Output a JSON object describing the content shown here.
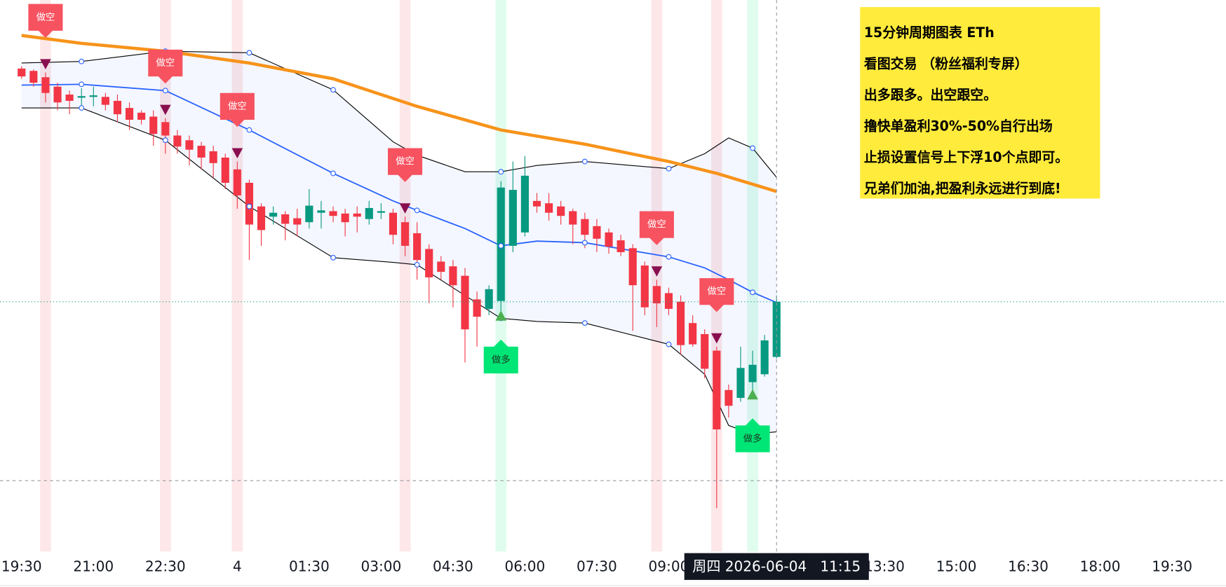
{
  "chart_data": {
    "type": "candlestick",
    "xlim": [
      -1.8,
      100.5
    ],
    "ylim": [
      0,
      700
    ],
    "xticks": [
      {
        "value": 0,
        "label": "19:30"
      },
      {
        "value": 6,
        "label": "21:00"
      },
      {
        "value": 12,
        "label": "22:30"
      },
      {
        "value": 18,
        "label": "4"
      },
      {
        "value": 24,
        "label": "01:30"
      },
      {
        "value": 30,
        "label": "03:00"
      },
      {
        "value": 36,
        "label": "04:30"
      },
      {
        "value": 42,
        "label": "06:00"
      },
      {
        "value": 48,
        "label": "07:30"
      },
      {
        "value": 54,
        "label": "09:00"
      },
      {
        "value": 72,
        "label": "13:30"
      },
      {
        "value": 78,
        "label": "15:00"
      },
      {
        "value": 84,
        "label": "16:30"
      },
      {
        "value": 90,
        "label": "18:00"
      },
      {
        "value": 96,
        "label": "19:30"
      }
    ],
    "up_color": "#089981",
    "down_color": "#f23645",
    "candles": {
      "x": [
        0,
        1,
        2,
        3,
        4,
        5,
        6,
        7,
        8,
        9,
        10,
        11,
        12,
        13,
        14,
        15,
        16,
        17,
        18,
        19,
        20,
        21,
        22,
        23,
        24,
        25,
        26,
        27,
        28,
        29,
        30,
        31,
        32,
        33,
        34,
        35,
        36,
        37,
        38,
        39,
        40,
        41,
        42,
        43,
        44,
        45,
        46,
        47,
        48,
        49,
        50,
        51,
        52,
        53,
        54,
        55,
        56,
        57,
        58,
        59,
        60,
        61,
        62,
        63
      ],
      "open": [
        613,
        610,
        602,
        590,
        580,
        576,
        577,
        577,
        572,
        563,
        557,
        552,
        545,
        528,
        522,
        515,
        508,
        500,
        485,
        468,
        438,
        425,
        428,
        423,
        418,
        430,
        432,
        429,
        429,
        422,
        430,
        430,
        418,
        404,
        384,
        368,
        362,
        350,
        320,
        308,
        318,
        388,
        405,
        445,
        442,
        438,
        432,
        422,
        413,
        405,
        395,
        385,
        363,
        337,
        328,
        317,
        290,
        276,
        255,
        205,
        195,
        215,
        225,
        247
      ],
      "high": [
        616,
        612,
        608,
        595,
        585,
        588,
        590,
        582,
        580,
        570,
        560,
        560,
        550,
        535,
        528,
        520,
        515,
        505,
        495,
        472,
        442,
        438,
        432,
        435,
        460,
        445,
        438,
        435,
        438,
        445,
        442,
        435,
        425,
        418,
        390,
        375,
        370,
        360,
        330,
        338,
        470,
        495,
        502,
        455,
        455,
        445,
        435,
        430,
        422,
        410,
        402,
        390,
        368,
        345,
        335,
        325,
        300,
        282,
        260,
        212,
        260,
        255,
        275,
        325
      ],
      "low": [
        600,
        590,
        570,
        560,
        555,
        565,
        565,
        560,
        545,
        535,
        542,
        515,
        505,
        505,
        490,
        485,
        475,
        460,
        435,
        370,
        388,
        415,
        395,
        400,
        410,
        410,
        418,
        400,
        405,
        415,
        422,
        390,
        375,
        345,
        315,
        345,
        310,
        240,
        260,
        300,
        305,
        380,
        400,
        430,
        420,
        415,
        390,
        385,
        380,
        378,
        375,
        280,
        300,
        285,
        300,
        250,
        260,
        220,
        55,
        170,
        190,
        205,
        222,
        245
      ],
      "close": [
        603,
        595,
        582,
        570,
        572,
        578,
        579,
        567,
        555,
        548,
        548,
        530,
        528,
        514,
        510,
        500,
        493,
        468,
        452,
        415,
        408,
        430,
        416,
        415,
        439,
        433,
        426,
        418,
        425,
        436,
        432,
        402,
        388,
        370,
        348,
        355,
        338,
        282,
        298,
        333,
        462,
        459,
        477,
        438,
        430,
        426,
        415,
        402,
        397,
        387,
        380,
        338,
        310,
        315,
        308,
        262,
        263,
        232,
        155,
        185,
        233,
        237,
        268,
        317
      ]
    },
    "ma": {
      "color": "#f7931a",
      "x": [
        0,
        5,
        12,
        19,
        26,
        33,
        40,
        47,
        54,
        58,
        63
      ],
      "values": [
        655,
        645,
        635,
        620,
        600,
        565,
        535,
        517,
        495,
        480,
        457
      ]
    },
    "bollinger": {
      "x": [
        0,
        5,
        12,
        19,
        26,
        31,
        33,
        37,
        40,
        43,
        47,
        54,
        57,
        59,
        61,
        63
      ],
      "upper": [
        620,
        622,
        635,
        633,
        586,
        520,
        503,
        482,
        482,
        490,
        495,
        486,
        505,
        525,
        512,
        475
      ],
      "middle": [
        592,
        593,
        585,
        535,
        480,
        445,
        433,
        410,
        388,
        394,
        392,
        374,
        360,
        345,
        329,
        316
      ],
      "lower": [
        563,
        563,
        522,
        438,
        373,
        367,
        364,
        325,
        296,
        292,
        290,
        263,
        225,
        160,
        149,
        152
      ],
      "band_color": "#2962ff",
      "middle_color": "#2962ff",
      "edge_color": "#000000"
    },
    "signals": [
      {
        "index": 2,
        "side": "short",
        "label": "做空"
      },
      {
        "index": 12,
        "side": "short",
        "label": "做空"
      },
      {
        "index": 18,
        "side": "short",
        "label": "做空"
      },
      {
        "index": 32,
        "side": "short",
        "label": "做空"
      },
      {
        "index": 40,
        "side": "long",
        "label": "做多"
      },
      {
        "index": 53,
        "side": "short",
        "label": "做空"
      },
      {
        "index": 58,
        "side": "short",
        "label": "做空"
      },
      {
        "index": 61,
        "side": "long",
        "label": "做多"
      }
    ],
    "crosshair": {
      "index": 63,
      "price": 90,
      "label": "周四 2026-06-04   11:15"
    },
    "notes": [
      "15分钟周期图表 ETh",
      "看图交易 （粉丝福利专屏）",
      "出多跟多。出空跟空。",
      "撸快单盈利30%-50%自行出场",
      "止损设置信号上下浮10个点即可。",
      "兄弟们加油,把盈利永远进行到底!"
    ]
  }
}
